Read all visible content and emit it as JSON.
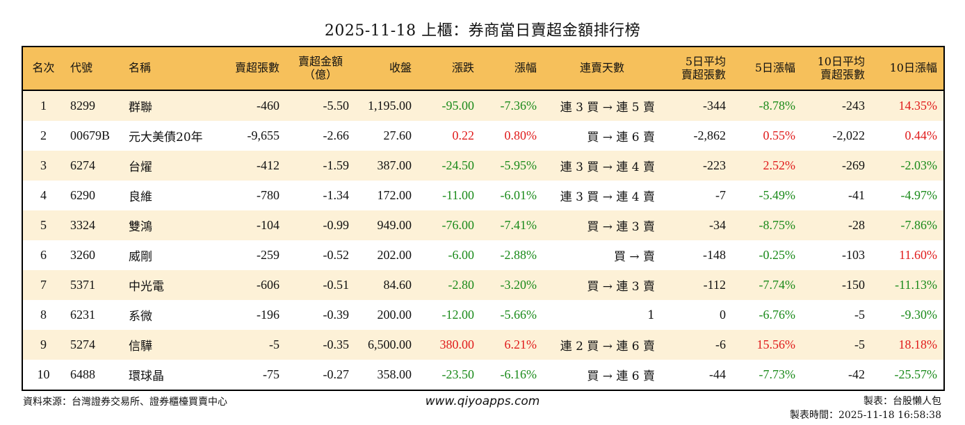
{
  "title": "2025-11-18 上櫃：券商當日賣超金額排行榜",
  "headers": {
    "rank": "名次",
    "code": "代號",
    "name": "名稱",
    "sell_shares": "賣超張數",
    "sell_amount_l1": "賣超金額",
    "sell_amount_l2": "（億）",
    "close": "收盤",
    "change": "漲跌",
    "change_pct": "漲幅",
    "streak": "連賣天數",
    "avg5_l1": "5日平均",
    "avg5_l2": "賣超張數",
    "pct5": "5日漲幅",
    "avg10_l1": "10日平均",
    "avg10_l2": "賣超張數",
    "pct10": "10日漲幅"
  },
  "rows": [
    {
      "rank": "1",
      "code": "8299",
      "name": "群聯",
      "sell_shares": "-460",
      "amount": "-5.50",
      "close": "1,195.00",
      "change": "-95.00",
      "change_pct": "-7.36%",
      "streak": "連 3 買 → 連 5 賣",
      "avg5": "-344",
      "pct5": "-8.78%",
      "avg10": "-243",
      "pct10": "14.35%"
    },
    {
      "rank": "2",
      "code": "00679B",
      "name": "元大美債20年",
      "sell_shares": "-9,655",
      "amount": "-2.66",
      "close": "27.60",
      "change": "0.22",
      "change_pct": "0.80%",
      "streak": "買 → 連 6 賣",
      "avg5": "-2,862",
      "pct5": "0.55%",
      "avg10": "-2,022",
      "pct10": "0.44%"
    },
    {
      "rank": "3",
      "code": "6274",
      "name": "台燿",
      "sell_shares": "-412",
      "amount": "-1.59",
      "close": "387.00",
      "change": "-24.50",
      "change_pct": "-5.95%",
      "streak": "連 3 買 → 連 4 賣",
      "avg5": "-223",
      "pct5": "2.52%",
      "avg10": "-269",
      "pct10": "-2.03%"
    },
    {
      "rank": "4",
      "code": "6290",
      "name": "良維",
      "sell_shares": "-780",
      "amount": "-1.34",
      "close": "172.00",
      "change": "-11.00",
      "change_pct": "-6.01%",
      "streak": "連 3 買 → 連 4 賣",
      "avg5": "-7",
      "pct5": "-5.49%",
      "avg10": "-41",
      "pct10": "-4.97%"
    },
    {
      "rank": "5",
      "code": "3324",
      "name": "雙鴻",
      "sell_shares": "-104",
      "amount": "-0.99",
      "close": "949.00",
      "change": "-76.00",
      "change_pct": "-7.41%",
      "streak": "買 → 連 3 賣",
      "avg5": "-34",
      "pct5": "-8.75%",
      "avg10": "-28",
      "pct10": "-7.86%"
    },
    {
      "rank": "6",
      "code": "3260",
      "name": "威剛",
      "sell_shares": "-259",
      "amount": "-0.52",
      "close": "202.00",
      "change": "-6.00",
      "change_pct": "-2.88%",
      "streak": "買 → 賣",
      "avg5": "-148",
      "pct5": "-0.25%",
      "avg10": "-103",
      "pct10": "11.60%"
    },
    {
      "rank": "7",
      "code": "5371",
      "name": "中光電",
      "sell_shares": "-606",
      "amount": "-0.51",
      "close": "84.60",
      "change": "-2.80",
      "change_pct": "-3.20%",
      "streak": "買 → 連 3 賣",
      "avg5": "-112",
      "pct5": "-7.74%",
      "avg10": "-150",
      "pct10": "-11.13%"
    },
    {
      "rank": "8",
      "code": "6231",
      "name": "系微",
      "sell_shares": "-196",
      "amount": "-0.39",
      "close": "200.00",
      "change": "-12.00",
      "change_pct": "-5.66%",
      "streak": "1",
      "avg5": "0",
      "pct5": "-6.76%",
      "avg10": "-5",
      "pct10": "-9.30%"
    },
    {
      "rank": "9",
      "code": "5274",
      "name": "信驊",
      "sell_shares": "-5",
      "amount": "-0.35",
      "close": "6,500.00",
      "change": "380.00",
      "change_pct": "6.21%",
      "streak": "連 2 買 → 連 6 賣",
      "avg5": "-6",
      "pct5": "15.56%",
      "avg10": "-5",
      "pct10": "18.18%"
    },
    {
      "rank": "10",
      "code": "6488",
      "name": "環球晶",
      "sell_shares": "-75",
      "amount": "-0.27",
      "close": "358.00",
      "change": "-23.50",
      "change_pct": "-6.16%",
      "streak": "買 → 連 6 賣",
      "avg5": "-44",
      "pct5": "-7.73%",
      "avg10": "-42",
      "pct10": "-25.57%"
    }
  ],
  "footer": {
    "source": "資料來源：台灣證券交易所、證券櫃檯買賣中心",
    "website": "www.qiyoapps.com",
    "author": "製表：台股懶人包",
    "timestamp": "製表時間：2025-11-18 16:58:38"
  },
  "colors": {
    "header_bg": "#f6c05b",
    "row_stripe": "#fdf1d7",
    "negative": "#1a8a1a",
    "positive": "#e01b1b"
  }
}
